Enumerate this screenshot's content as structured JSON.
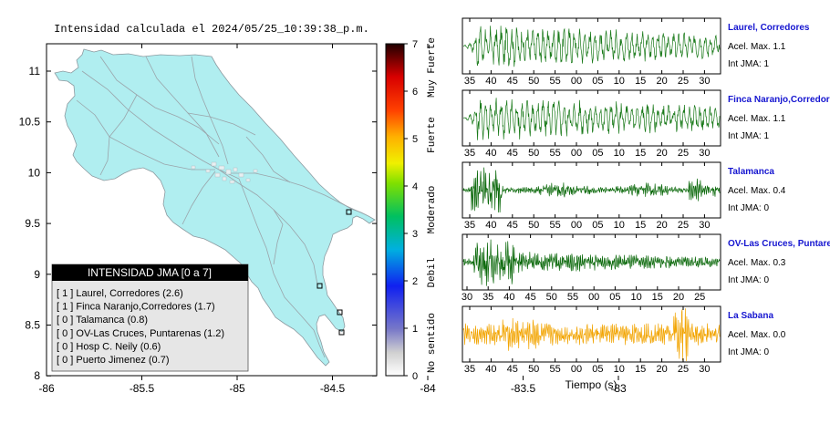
{
  "map": {
    "title": "Intensidad calculada el 2024/05/25_10:39:38_p.m.",
    "x_ticks": [
      "-86",
      "-85.5",
      "-85",
      "-84.5",
      "-84",
      "-83.5",
      "-83"
    ],
    "y_ticks": [
      "11",
      "10.5",
      "10",
      "9.5",
      "9",
      "8.5",
      "8"
    ],
    "colors": {
      "land": "#b0eef0",
      "roads": "#9aa4aa",
      "frame": "#000000"
    }
  },
  "colorbar": {
    "ticks": [
      "0",
      "1",
      "2",
      "3",
      "4",
      "5",
      "6",
      "7"
    ],
    "labels": [
      "No sentido",
      "Debil",
      "Moderado",
      "Fuerte",
      "Muy Fuerte"
    ]
  },
  "legend": {
    "title": "INTENSIDAD JMA [0 a 7]",
    "items": [
      "[ 1 ]  Laurel, Corredores (2.6)",
      "[ 1 ]  Finca Naranjo,Corredores (1.7)",
      "[ 0 ]  Talamanca (0.8)",
      "[ 0 ]  OV-Las Cruces, Puntarenas (1.2)",
      "[ 0 ]  Hosp C. Neily (0.6)",
      "[ 0 ]  Puerto Jimenez (0.7)"
    ]
  },
  "stations": [
    {
      "name": "Laurel, Corredores",
      "accel": "Acel. Max. 1.1",
      "jma": "Int JMA: 1",
      "color": "#1a7a1a",
      "ticks": [
        "35",
        "40",
        "45",
        "50",
        "55",
        "00",
        "05",
        "10",
        "15",
        "20",
        "25",
        "30"
      ]
    },
    {
      "name": "Finca Naranjo,Corredores",
      "accel": "Acel. Max. 1.1",
      "jma": "Int JMA: 1",
      "color": "#1a7a1a",
      "ticks": [
        "35",
        "40",
        "45",
        "50",
        "55",
        "00",
        "05",
        "10",
        "15",
        "20",
        "25",
        "30"
      ]
    },
    {
      "name": "Talamanca",
      "accel": "Acel. Max. 0.4",
      "jma": "Int JMA: 0",
      "color": "#0d6a0d",
      "ticks": [
        "35",
        "40",
        "45",
        "50",
        "55",
        "00",
        "05",
        "10",
        "15",
        "20",
        "25",
        "30"
      ]
    },
    {
      "name": "OV-Las Cruces, Puntarenas",
      "accel": "Acel. Max. 0.3",
      "jma": "Int JMA: 0",
      "color": "#0d6a0d",
      "ticks": [
        "30",
        "35",
        "40",
        "45",
        "50",
        "55",
        "00",
        "05",
        "10",
        "15",
        "20",
        "25"
      ]
    },
    {
      "name": "La Sabana",
      "accel": "Acel. Max. 0.0",
      "jma": "Int JMA: 0",
      "color": "#f2a400",
      "ticks": [
        "35",
        "40",
        "45",
        "50",
        "55",
        "00",
        "05",
        "10",
        "15",
        "20",
        "25",
        "30"
      ]
    }
  ],
  "xlabel": "Tiempo (s)"
}
